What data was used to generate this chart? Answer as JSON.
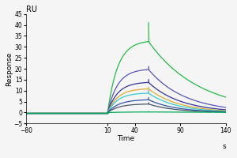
{
  "title": "RU",
  "xlabel": "Time",
  "xlabel_suffix": "s",
  "ylabel": "Response",
  "xlim": [
    -80,
    140
  ],
  "ylim": [
    -5,
    45
  ],
  "xticks": [
    -80,
    10,
    40,
    90,
    140
  ],
  "yticks": [
    -5,
    0,
    5,
    10,
    15,
    20,
    25,
    30,
    35,
    40,
    45
  ],
  "association_start": 10,
  "association_end": 55,
  "dissociation_end": 140,
  "curves": [
    {
      "color": "#22bb44",
      "plateau": 33,
      "ka": 0.09,
      "kd": 0.018,
      "spike": 41
    },
    {
      "color": "#5555bb",
      "plateau": 20,
      "ka": 0.09,
      "kd": 0.025,
      "spike": 21
    },
    {
      "color": "#333399",
      "plateau": 14,
      "ka": 0.09,
      "kd": 0.028,
      "spike": 15
    },
    {
      "color": "#ddaa33",
      "plateau": 11,
      "ka": 0.09,
      "kd": 0.03,
      "spike": 11.5
    },
    {
      "color": "#33cccc",
      "plateau": 9,
      "ka": 0.09,
      "kd": 0.032,
      "spike": 10
    },
    {
      "color": "#3355aa",
      "plateau": 6,
      "ka": 0.08,
      "kd": 0.033,
      "spike": 6.8
    },
    {
      "color": "#445566",
      "plateau": 4,
      "ka": 0.08,
      "kd": 0.034,
      "spike": 4.5
    },
    {
      "color": "#00aa55",
      "plateau": 0.3,
      "ka": 0.05,
      "kd": 0.01,
      "spike": 0.35
    }
  ],
  "background_color": "#f5f5f5",
  "linewidth": 0.9,
  "spike_sharpness": 8.0
}
